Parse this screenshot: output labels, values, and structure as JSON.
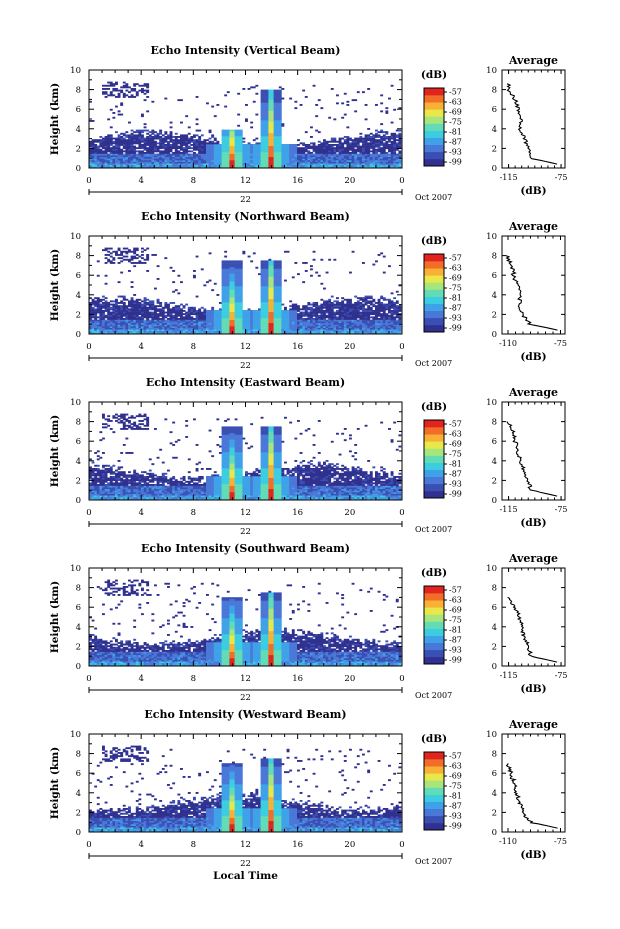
{
  "chart_data": [
    {
      "type": "heatmap",
      "title": "Echo Intensity (Vertical Beam)",
      "ylabel": "Height (km)",
      "ylim": [
        0,
        10
      ],
      "y_ticks": [
        "0",
        "2",
        "4",
        "6",
        "8",
        "10"
      ],
      "xlim": [
        0,
        24
      ],
      "x_ticks": [
        "0",
        "4",
        "8",
        "12",
        "16",
        "20",
        "0"
      ],
      "date_day": "22",
      "date_suffix": "Oct 2007",
      "colorbar": {
        "unit": "(dB)",
        "ticks": [
          "-57",
          "-63",
          "-69",
          "-75",
          "-81",
          "-87",
          "-93",
          "-99"
        ]
      },
      "storm_cores": [
        {
          "time": 11.0,
          "top": 4.0
        },
        {
          "time": 14.0,
          "top": 8.0
        }
      ],
      "average_profile": {
        "title": "Average",
        "xlabel": "(dB)",
        "x_ticks": [
          "-115",
          "-75"
        ],
        "xlim": [
          -120,
          -72
        ],
        "y_ticks": [
          "0",
          "2",
          "4",
          "6",
          "8",
          "10"
        ],
        "height": [
          0.4,
          1,
          2,
          3,
          4,
          5,
          6,
          7,
          8,
          8.6
        ],
        "value": [
          -78,
          -98,
          -100,
          -103,
          -106,
          -106,
          -108,
          -110,
          -115,
          -115
        ]
      }
    },
    {
      "type": "heatmap",
      "title": "Echo Intensity (Northward Beam)",
      "ylabel": "Height (km)",
      "ylim": [
        0,
        10
      ],
      "y_ticks": [
        "0",
        "2",
        "4",
        "6",
        "8",
        "10"
      ],
      "xlim": [
        0,
        24
      ],
      "x_ticks": [
        "0",
        "4",
        "8",
        "12",
        "16",
        "20",
        "0"
      ],
      "date_day": "22",
      "date_suffix": "Oct 2007",
      "colorbar": {
        "unit": "(dB)",
        "ticks": [
          "-57",
          "-63",
          "-69",
          "-75",
          "-81",
          "-87",
          "-93",
          "-99"
        ]
      },
      "storm_cores": [
        {
          "time": 11.0,
          "top": 7.5
        },
        {
          "time": 14.0,
          "top": 7.5
        }
      ],
      "average_profile": {
        "title": "Average",
        "xlabel": "(dB)",
        "x_ticks": [
          "-110",
          "-75"
        ],
        "xlim": [
          -114,
          -72
        ],
        "y_ticks": [
          "0",
          "2",
          "4",
          "6",
          "8",
          "10"
        ],
        "height": [
          0.4,
          1,
          2,
          3,
          4,
          5,
          6,
          7,
          8
        ],
        "value": [
          -77,
          -95,
          -100,
          -102,
          -102,
          -104,
          -106,
          -108,
          -110
        ]
      }
    },
    {
      "type": "heatmap",
      "title": "Echo Intensity (Eastward Beam)",
      "ylabel": "Height (km)",
      "ylim": [
        0,
        10
      ],
      "y_ticks": [
        "0",
        "2",
        "4",
        "6",
        "8",
        "10"
      ],
      "xlim": [
        0,
        24
      ],
      "x_ticks": [
        "0",
        "4",
        "8",
        "12",
        "16",
        "20",
        "0"
      ],
      "date_day": "22",
      "date_suffix": "Oct 2007",
      "colorbar": {
        "unit": "(dB)",
        "ticks": [
          "-57",
          "-63",
          "-69",
          "-75",
          "-81",
          "-87",
          "-93",
          "-99"
        ]
      },
      "storm_cores": [
        {
          "time": 11.0,
          "top": 7.5
        },
        {
          "time": 14.0,
          "top": 7.5
        }
      ],
      "average_profile": {
        "title": "Average",
        "xlabel": "(dB)",
        "x_ticks": [
          "-115",
          "-75"
        ],
        "xlim": [
          -120,
          -72
        ],
        "y_ticks": [
          "0",
          "2",
          "4",
          "6",
          "8",
          "10"
        ],
        "height": [
          0.4,
          1,
          2,
          3,
          4,
          5,
          6,
          7,
          8
        ],
        "value": [
          -78,
          -98,
          -100,
          -103,
          -106,
          -108,
          -110,
          -112,
          -115
        ]
      }
    },
    {
      "type": "heatmap",
      "title": "Echo Intensity (Southward Beam)",
      "ylabel": "Height (km)",
      "ylim": [
        0,
        10
      ],
      "y_ticks": [
        "0",
        "2",
        "4",
        "6",
        "8",
        "10"
      ],
      "xlim": [
        0,
        24
      ],
      "x_ticks": [
        "0",
        "4",
        "8",
        "12",
        "16",
        "20",
        "0"
      ],
      "date_day": "22",
      "date_suffix": "Oct 2007",
      "colorbar": {
        "unit": "(dB)",
        "ticks": [
          "-57",
          "-63",
          "-69",
          "-75",
          "-81",
          "-87",
          "-93",
          "-99"
        ]
      },
      "storm_cores": [
        {
          "time": 11.0,
          "top": 7.0
        },
        {
          "time": 14.0,
          "top": 7.5
        }
      ],
      "average_profile": {
        "title": "Average",
        "xlabel": "(dB)",
        "x_ticks": [
          "-115",
          "-75"
        ],
        "xlim": [
          -120,
          -72
        ],
        "y_ticks": [
          "0",
          "2",
          "4",
          "6",
          "8",
          "10"
        ],
        "height": [
          0.4,
          1,
          2,
          3,
          4,
          5,
          6,
          7
        ],
        "value": [
          -78,
          -98,
          -100,
          -103,
          -105,
          -107,
          -110,
          -115
        ]
      }
    },
    {
      "type": "heatmap",
      "title": "Echo Intensity (Westward Beam)",
      "ylabel": "Height (km)",
      "xlabel": "Local Time",
      "ylim": [
        0,
        10
      ],
      "y_ticks": [
        "0",
        "2",
        "4",
        "6",
        "8",
        "10"
      ],
      "xlim": [
        0,
        24
      ],
      "x_ticks": [
        "0",
        "4",
        "8",
        "12",
        "16",
        "20",
        "0"
      ],
      "date_day": "22",
      "date_suffix": "Oct 2007",
      "colorbar": {
        "unit": "(dB)",
        "ticks": [
          "-57",
          "-63",
          "-69",
          "-75",
          "-81",
          "-87",
          "-93",
          "-99"
        ]
      },
      "storm_cores": [
        {
          "time": 11.0,
          "top": 7.0
        },
        {
          "time": 14.0,
          "top": 7.5
        }
      ],
      "average_profile": {
        "title": "Average",
        "xlabel": "(dB)",
        "x_ticks": [
          "-110",
          "-75"
        ],
        "xlim": [
          -114,
          -72
        ],
        "y_ticks": [
          "0",
          "2",
          "4",
          "6",
          "8",
          "10"
        ],
        "height": [
          0.4,
          1,
          2,
          3,
          4,
          5,
          6,
          7
        ],
        "value": [
          -77,
          -95,
          -100,
          -102,
          -104,
          -106,
          -108,
          -110
        ]
      }
    }
  ],
  "colormap": [
    "#30318f",
    "#3a4fb3",
    "#4a78d8",
    "#3fa2e8",
    "#3ccde0",
    "#62dcb4",
    "#a8e67d",
    "#e8e84a",
    "#f8b035",
    "#f26d28",
    "#e1241e"
  ]
}
